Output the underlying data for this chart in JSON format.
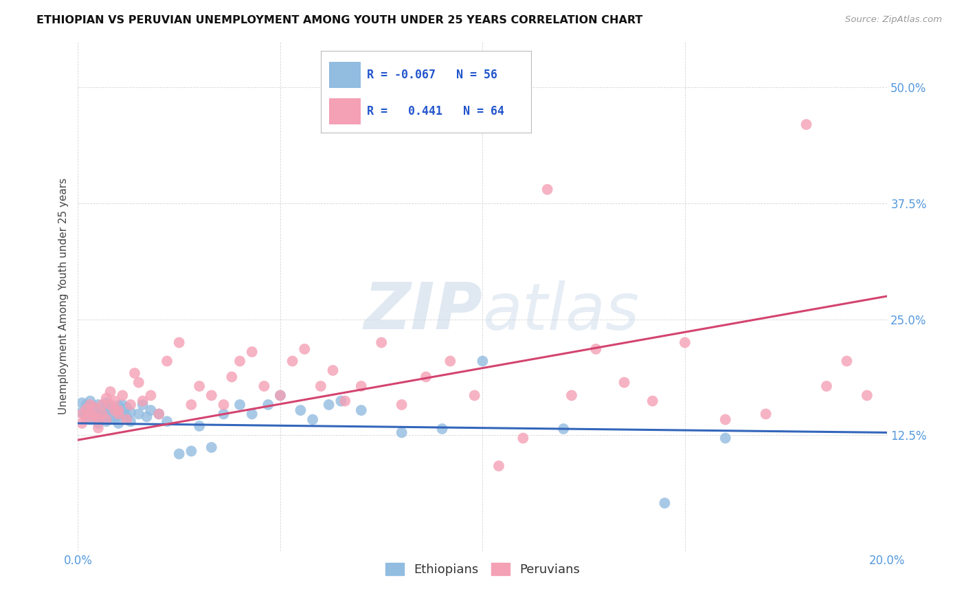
{
  "title": "ETHIOPIAN VS PERUVIAN UNEMPLOYMENT AMONG YOUTH UNDER 25 YEARS CORRELATION CHART",
  "source": "Source: ZipAtlas.com",
  "ylabel": "Unemployment Among Youth under 25 years",
  "xlim": [
    0.0,
    0.2
  ],
  "ylim": [
    0.0,
    0.55
  ],
  "yticks": [
    0.125,
    0.25,
    0.375,
    0.5
  ],
  "ytick_labels": [
    "12.5%",
    "25.0%",
    "37.5%",
    "50.0%"
  ],
  "xtick_labels_left": "0.0%",
  "xtick_labels_right": "20.0%",
  "xticks_minor": [
    0.05,
    0.1,
    0.15
  ],
  "legend_R_blue": "-0.067",
  "legend_N_blue": "56",
  "legend_R_pink": "0.441",
  "legend_N_pink": "64",
  "blue_color": "#92bce0",
  "pink_color": "#f4a0b5",
  "blue_line_color": "#3366bb",
  "pink_line_color": "#d44470",
  "watermark_zip": "ZIP",
  "watermark_atlas": "atlas",
  "ethiopians_x": [
    0.001,
    0.001,
    0.002,
    0.002,
    0.003,
    0.003,
    0.003,
    0.004,
    0.004,
    0.005,
    0.005,
    0.005,
    0.006,
    0.006,
    0.007,
    0.007,
    0.007,
    0.008,
    0.008,
    0.009,
    0.009,
    0.01,
    0.01,
    0.01,
    0.011,
    0.011,
    0.012,
    0.012,
    0.013,
    0.013,
    0.015,
    0.016,
    0.017,
    0.018,
    0.02,
    0.022,
    0.025,
    0.028,
    0.03,
    0.033,
    0.036,
    0.04,
    0.043,
    0.047,
    0.05,
    0.055,
    0.058,
    0.062,
    0.065,
    0.07,
    0.08,
    0.09,
    0.1,
    0.12,
    0.145,
    0.16
  ],
  "ethiopians_y": [
    0.15,
    0.16,
    0.148,
    0.158,
    0.142,
    0.152,
    0.162,
    0.145,
    0.155,
    0.138,
    0.148,
    0.158,
    0.143,
    0.153,
    0.14,
    0.15,
    0.16,
    0.145,
    0.155,
    0.142,
    0.152,
    0.147,
    0.157,
    0.138,
    0.148,
    0.158,
    0.145,
    0.155,
    0.15,
    0.14,
    0.148,
    0.158,
    0.145,
    0.152,
    0.148,
    0.14,
    0.105,
    0.108,
    0.135,
    0.112,
    0.148,
    0.158,
    0.148,
    0.158,
    0.168,
    0.152,
    0.142,
    0.158,
    0.162,
    0.152,
    0.128,
    0.132,
    0.205,
    0.132,
    0.052,
    0.122
  ],
  "peruvians_x": [
    0.001,
    0.001,
    0.002,
    0.002,
    0.003,
    0.003,
    0.004,
    0.004,
    0.005,
    0.005,
    0.006,
    0.006,
    0.007,
    0.007,
    0.008,
    0.008,
    0.009,
    0.009,
    0.01,
    0.01,
    0.011,
    0.012,
    0.013,
    0.014,
    0.015,
    0.016,
    0.018,
    0.02,
    0.022,
    0.025,
    0.028,
    0.03,
    0.033,
    0.036,
    0.038,
    0.04,
    0.043,
    0.046,
    0.05,
    0.053,
    0.056,
    0.06,
    0.063,
    0.066,
    0.07,
    0.075,
    0.08,
    0.086,
    0.092,
    0.098,
    0.104,
    0.11,
    0.116,
    0.122,
    0.128,
    0.135,
    0.142,
    0.15,
    0.16,
    0.17,
    0.18,
    0.185,
    0.19,
    0.195
  ],
  "peruvians_y": [
    0.138,
    0.148,
    0.143,
    0.153,
    0.148,
    0.158,
    0.145,
    0.155,
    0.133,
    0.143,
    0.148,
    0.158,
    0.165,
    0.142,
    0.158,
    0.172,
    0.152,
    0.162,
    0.152,
    0.148,
    0.168,
    0.142,
    0.158,
    0.192,
    0.182,
    0.162,
    0.168,
    0.148,
    0.205,
    0.225,
    0.158,
    0.178,
    0.168,
    0.158,
    0.188,
    0.205,
    0.215,
    0.178,
    0.168,
    0.205,
    0.218,
    0.178,
    0.195,
    0.162,
    0.178,
    0.225,
    0.158,
    0.188,
    0.205,
    0.168,
    0.092,
    0.122,
    0.39,
    0.168,
    0.218,
    0.182,
    0.162,
    0.225,
    0.142,
    0.148,
    0.46,
    0.178,
    0.205,
    0.168
  ]
}
